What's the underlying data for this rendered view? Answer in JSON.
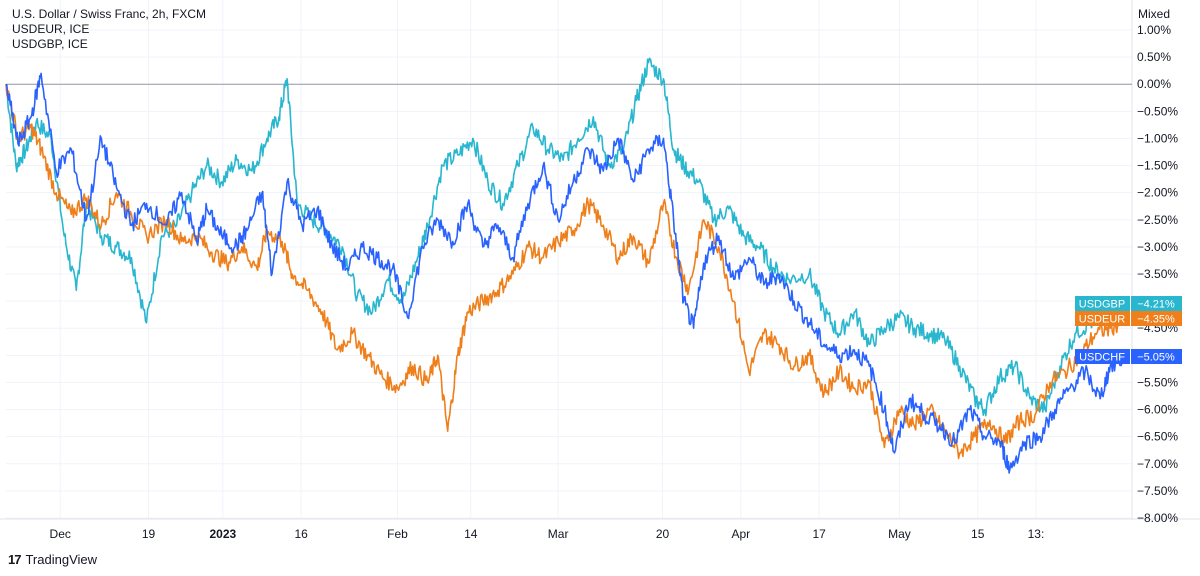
{
  "legend": {
    "line1": "U.S. Dollar / Swiss Franc, 2h, FXCM",
    "line2": "USDEUR, ICE",
    "line3": "USDGBP, ICE"
  },
  "footer": {
    "logo": "17",
    "brand": "TradingView"
  },
  "chart_data": {
    "type": "line",
    "scale_label": "Mixed",
    "ylim": [
      -8.0,
      1.0
    ],
    "y_ticks": [
      "1.00%",
      "0.50%",
      "0.00%",
      "−0.50%",
      "−1.00%",
      "−1.50%",
      "−2.00%",
      "−2.50%",
      "−3.00%",
      "−3.50%",
      "−4.00%",
      "−4.50%",
      "−5.00%",
      "−5.50%",
      "−6.00%",
      "−6.50%",
      "−7.00%",
      "−7.50%",
      "−8.00%"
    ],
    "y_tick_values": [
      1.0,
      0.5,
      0.0,
      -0.5,
      -1.0,
      -1.5,
      -2.0,
      -2.5,
      -3.0,
      -3.5,
      -4.0,
      -4.5,
      -5.0,
      -5.5,
      -6.0,
      -6.5,
      -7.0,
      -7.5,
      -8.0
    ],
    "x_ticks": [
      {
        "label": "Dec",
        "t": 0.054,
        "bold": false
      },
      {
        "label": "19",
        "t": 0.142,
        "bold": false
      },
      {
        "label": "2023",
        "t": 0.216,
        "bold": true
      },
      {
        "label": "16",
        "t": 0.294,
        "bold": false
      },
      {
        "label": "Feb",
        "t": 0.39,
        "bold": false
      },
      {
        "label": "14",
        "t": 0.463,
        "bold": false
      },
      {
        "label": "Mar",
        "t": 0.55,
        "bold": false
      },
      {
        "label": "20",
        "t": 0.654,
        "bold": false
      },
      {
        "label": "Apr",
        "t": 0.732,
        "bold": false
      },
      {
        "label": "17",
        "t": 0.81,
        "bold": false
      },
      {
        "label": "May",
        "t": 0.89,
        "bold": false
      },
      {
        "label": "15",
        "t": 0.968,
        "bold": false
      },
      {
        "label": "13:",
        "t": 1.026,
        "bold": false
      }
    ],
    "series": [
      {
        "name": "USDCHF",
        "color": "#2962ff",
        "last_label": "−5.05%",
        "points": [
          [
            0,
            0
          ],
          [
            0.012,
            -1.1
          ],
          [
            0.025,
            -0.6
          ],
          [
            0.035,
            0.2
          ],
          [
            0.05,
            -1.6
          ],
          [
            0.065,
            -1.2
          ],
          [
            0.08,
            -2.5
          ],
          [
            0.095,
            -1.0
          ],
          [
            0.11,
            -1.9
          ],
          [
            0.125,
            -2.6
          ],
          [
            0.14,
            -2.2
          ],
          [
            0.16,
            -2.6
          ],
          [
            0.175,
            -2.0
          ],
          [
            0.19,
            -2.9
          ],
          [
            0.2,
            -2.3
          ],
          [
            0.215,
            -2.8
          ],
          [
            0.228,
            -3.0
          ],
          [
            0.24,
            -2.7
          ],
          [
            0.255,
            -2.0
          ],
          [
            0.265,
            -3.5
          ],
          [
            0.28,
            -1.8
          ],
          [
            0.295,
            -2.6
          ],
          [
            0.31,
            -2.3
          ],
          [
            0.325,
            -3.0
          ],
          [
            0.34,
            -3.4
          ],
          [
            0.355,
            -3.0
          ],
          [
            0.37,
            -3.2
          ],
          [
            0.385,
            -3.4
          ],
          [
            0.4,
            -4.3
          ],
          [
            0.415,
            -3.0
          ],
          [
            0.43,
            -2.5
          ],
          [
            0.445,
            -2.9
          ],
          [
            0.46,
            -2.2
          ],
          [
            0.475,
            -3.0
          ],
          [
            0.49,
            -2.6
          ],
          [
            0.505,
            -3.2
          ],
          [
            0.52,
            -2.2
          ],
          [
            0.535,
            -1.5
          ],
          [
            0.55,
            -2.5
          ],
          [
            0.565,
            -1.8
          ],
          [
            0.58,
            -1.2
          ],
          [
            0.595,
            -1.6
          ],
          [
            0.61,
            -1.0
          ],
          [
            0.625,
            -1.8
          ],
          [
            0.64,
            -1.2
          ],
          [
            0.655,
            -1.0
          ],
          [
            0.665,
            -2.5
          ],
          [
            0.675,
            -4.0
          ],
          [
            0.685,
            -4.5
          ],
          [
            0.695,
            -3.3
          ],
          [
            0.71,
            -2.8
          ],
          [
            0.725,
            -3.6
          ],
          [
            0.74,
            -3.2
          ],
          [
            0.755,
            -3.7
          ],
          [
            0.77,
            -3.5
          ],
          [
            0.785,
            -4.0
          ],
          [
            0.8,
            -4.4
          ],
          [
            0.815,
            -4.8
          ],
          [
            0.83,
            -5.0
          ],
          [
            0.845,
            -4.9
          ],
          [
            0.86,
            -5.2
          ],
          [
            0.875,
            -6.0
          ],
          [
            0.885,
            -6.8
          ],
          [
            0.9,
            -5.8
          ],
          [
            0.915,
            -6.1
          ],
          [
            0.93,
            -6.3
          ],
          [
            0.945,
            -6.6
          ],
          [
            0.96,
            -6.0
          ],
          [
            0.975,
            -6.5
          ],
          [
            0.99,
            -6.6
          ],
          [
            1.0,
            -7.1
          ],
          [
            1.015,
            -6.6
          ],
          [
            1.03,
            -6.5
          ],
          [
            1.045,
            -6.0
          ],
          [
            1.06,
            -5.6
          ],
          [
            1.075,
            -5.3
          ],
          [
            1.09,
            -5.8
          ],
          [
            1.1,
            -5.2
          ],
          [
            1.115,
            -5.05
          ]
        ]
      },
      {
        "name": "USDEUR",
        "color": "#ef7f1a",
        "last_label": "−4.35%",
        "points": [
          [
            0,
            0
          ],
          [
            0.012,
            -1.0
          ],
          [
            0.025,
            -0.8
          ],
          [
            0.035,
            -1.2
          ],
          [
            0.05,
            -2.0
          ],
          [
            0.065,
            -2.4
          ],
          [
            0.08,
            -2.1
          ],
          [
            0.095,
            -2.6
          ],
          [
            0.11,
            -2.0
          ],
          [
            0.125,
            -2.4
          ],
          [
            0.14,
            -2.8
          ],
          [
            0.16,
            -2.5
          ],
          [
            0.175,
            -2.9
          ],
          [
            0.19,
            -2.8
          ],
          [
            0.205,
            -3.1
          ],
          [
            0.22,
            -3.3
          ],
          [
            0.235,
            -3.0
          ],
          [
            0.25,
            -3.4
          ],
          [
            0.26,
            -2.7
          ],
          [
            0.275,
            -2.9
          ],
          [
            0.285,
            -3.5
          ],
          [
            0.3,
            -3.8
          ],
          [
            0.315,
            -4.2
          ],
          [
            0.33,
            -4.9
          ],
          [
            0.345,
            -4.6
          ],
          [
            0.36,
            -5.0
          ],
          [
            0.375,
            -5.4
          ],
          [
            0.39,
            -5.6
          ],
          [
            0.405,
            -5.2
          ],
          [
            0.42,
            -5.5
          ],
          [
            0.43,
            -5.0
          ],
          [
            0.44,
            -6.4
          ],
          [
            0.45,
            -5.0
          ],
          [
            0.46,
            -4.2
          ],
          [
            0.475,
            -4.0
          ],
          [
            0.49,
            -3.8
          ],
          [
            0.505,
            -3.5
          ],
          [
            0.52,
            -3.0
          ],
          [
            0.535,
            -3.2
          ],
          [
            0.55,
            -2.9
          ],
          [
            0.565,
            -2.7
          ],
          [
            0.58,
            -2.2
          ],
          [
            0.595,
            -2.6
          ],
          [
            0.61,
            -3.2
          ],
          [
            0.625,
            -2.8
          ],
          [
            0.64,
            -3.3
          ],
          [
            0.655,
            -2.2
          ],
          [
            0.668,
            -3.2
          ],
          [
            0.68,
            -3.8
          ],
          [
            0.695,
            -2.5
          ],
          [
            0.71,
            -3.0
          ],
          [
            0.725,
            -4.0
          ],
          [
            0.74,
            -5.3
          ],
          [
            0.755,
            -4.6
          ],
          [
            0.77,
            -4.8
          ],
          [
            0.785,
            -5.2
          ],
          [
            0.8,
            -5.0
          ],
          [
            0.815,
            -5.7
          ],
          [
            0.83,
            -5.3
          ],
          [
            0.845,
            -5.6
          ],
          [
            0.86,
            -5.5
          ],
          [
            0.875,
            -6.7
          ],
          [
            0.89,
            -6.0
          ],
          [
            0.905,
            -6.3
          ],
          [
            0.92,
            -6.0
          ],
          [
            0.935,
            -6.4
          ],
          [
            0.95,
            -6.8
          ],
          [
            0.965,
            -6.5
          ],
          [
            0.98,
            -6.2
          ],
          [
            0.995,
            -6.6
          ],
          [
            1.01,
            -6.2
          ],
          [
            1.025,
            -6.1
          ],
          [
            1.04,
            -5.5
          ],
          [
            1.055,
            -5.3
          ],
          [
            1.07,
            -5.0
          ],
          [
            1.085,
            -4.6
          ],
          [
            1.1,
            -4.5
          ],
          [
            1.115,
            -4.35
          ]
        ]
      },
      {
        "name": "USDGBP",
        "color": "#29b6cf",
        "last_label": "−4.21%",
        "points": [
          [
            0,
            0
          ],
          [
            0.01,
            -1.5
          ],
          [
            0.02,
            -1.2
          ],
          [
            0.03,
            -0.7
          ],
          [
            0.045,
            -1.0
          ],
          [
            0.058,
            -2.8
          ],
          [
            0.07,
            -3.8
          ],
          [
            0.08,
            -2.2
          ],
          [
            0.095,
            -2.8
          ],
          [
            0.11,
            -3.0
          ],
          [
            0.125,
            -3.2
          ],
          [
            0.14,
            -4.4
          ],
          [
            0.155,
            -2.8
          ],
          [
            0.17,
            -2.6
          ],
          [
            0.185,
            -2.0
          ],
          [
            0.2,
            -1.5
          ],
          [
            0.215,
            -1.8
          ],
          [
            0.23,
            -1.4
          ],
          [
            0.245,
            -1.6
          ],
          [
            0.26,
            -1.0
          ],
          [
            0.272,
            -0.6
          ],
          [
            0.28,
            0.1
          ],
          [
            0.29,
            -2.2
          ],
          [
            0.305,
            -2.5
          ],
          [
            0.32,
            -2.7
          ],
          [
            0.335,
            -3.0
          ],
          [
            0.35,
            -3.9
          ],
          [
            0.365,
            -4.2
          ],
          [
            0.38,
            -3.6
          ],
          [
            0.395,
            -4.0
          ],
          [
            0.41,
            -3.2
          ],
          [
            0.42,
            -2.6
          ],
          [
            0.435,
            -1.5
          ],
          [
            0.45,
            -1.3
          ],
          [
            0.465,
            -1.0
          ],
          [
            0.48,
            -1.8
          ],
          [
            0.495,
            -2.2
          ],
          [
            0.51,
            -1.5
          ],
          [
            0.525,
            -0.8
          ],
          [
            0.54,
            -1.2
          ],
          [
            0.555,
            -1.4
          ],
          [
            0.57,
            -1.0
          ],
          [
            0.585,
            -0.6
          ],
          [
            0.6,
            -1.5
          ],
          [
            0.615,
            -1.2
          ],
          [
            0.628,
            -0.3
          ],
          [
            0.64,
            0.4
          ],
          [
            0.655,
            0.1
          ],
          [
            0.665,
            -1.2
          ],
          [
            0.675,
            -1.5
          ],
          [
            0.69,
            -1.8
          ],
          [
            0.705,
            -2.5
          ],
          [
            0.72,
            -2.3
          ],
          [
            0.735,
            -2.8
          ],
          [
            0.75,
            -3.0
          ],
          [
            0.765,
            -3.4
          ],
          [
            0.78,
            -3.6
          ],
          [
            0.8,
            -3.5
          ],
          [
            0.815,
            -4.2
          ],
          [
            0.83,
            -4.6
          ],
          [
            0.845,
            -4.2
          ],
          [
            0.86,
            -4.8
          ],
          [
            0.875,
            -4.5
          ],
          [
            0.89,
            -4.3
          ],
          [
            0.905,
            -4.5
          ],
          [
            0.92,
            -4.6
          ],
          [
            0.935,
            -4.7
          ],
          [
            0.95,
            -5.2
          ],
          [
            0.965,
            -5.8
          ],
          [
            0.975,
            -6.0
          ],
          [
            0.99,
            -5.4
          ],
          [
            1.005,
            -5.2
          ],
          [
            1.02,
            -5.8
          ],
          [
            1.035,
            -6.0
          ],
          [
            1.05,
            -5.2
          ],
          [
            1.065,
            -4.6
          ],
          [
            1.08,
            -4.4
          ],
          [
            1.1,
            -4.3
          ],
          [
            1.115,
            -4.21
          ]
        ]
      }
    ]
  }
}
